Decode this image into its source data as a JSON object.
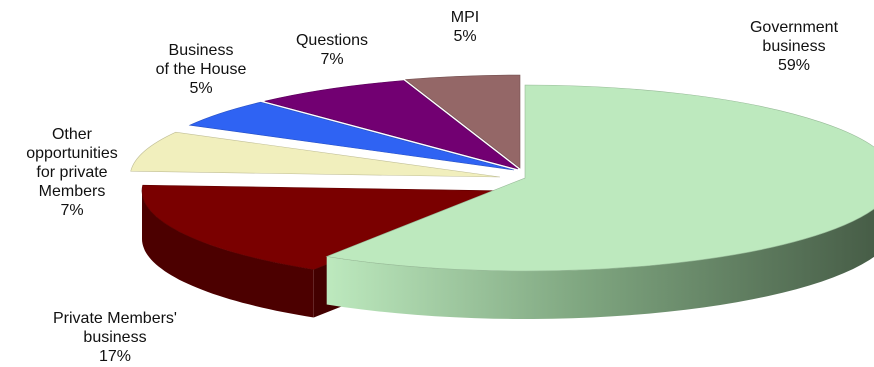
{
  "chart_data": {
    "type": "pie",
    "style": "3d-exploded",
    "title": "",
    "slices": [
      {
        "label_lines": [
          "Government",
          "business"
        ],
        "value_text": "59%",
        "value": 59,
        "color": "#bde9be"
      },
      {
        "label_lines": [
          "Private  Members'",
          "business"
        ],
        "value_text": "17%",
        "value": 17,
        "color": "#7a0000"
      },
      {
        "label_lines": [
          "Other",
          "opportunities",
          "for private",
          "Members"
        ],
        "value_text": "7%",
        "value": 7,
        "color": "#f1efbd"
      },
      {
        "label_lines": [
          "Business",
          "of the House"
        ],
        "value_text": "5%",
        "value": 5,
        "color": "#2f63f3"
      },
      {
        "label_lines": [
          "Questions"
        ],
        "value_text": "7%",
        "value": 7,
        "color": "#720072"
      },
      {
        "label_lines": [
          "MPI"
        ],
        "value_text": "5%",
        "value": 5,
        "color": "#946767"
      }
    ]
  }
}
